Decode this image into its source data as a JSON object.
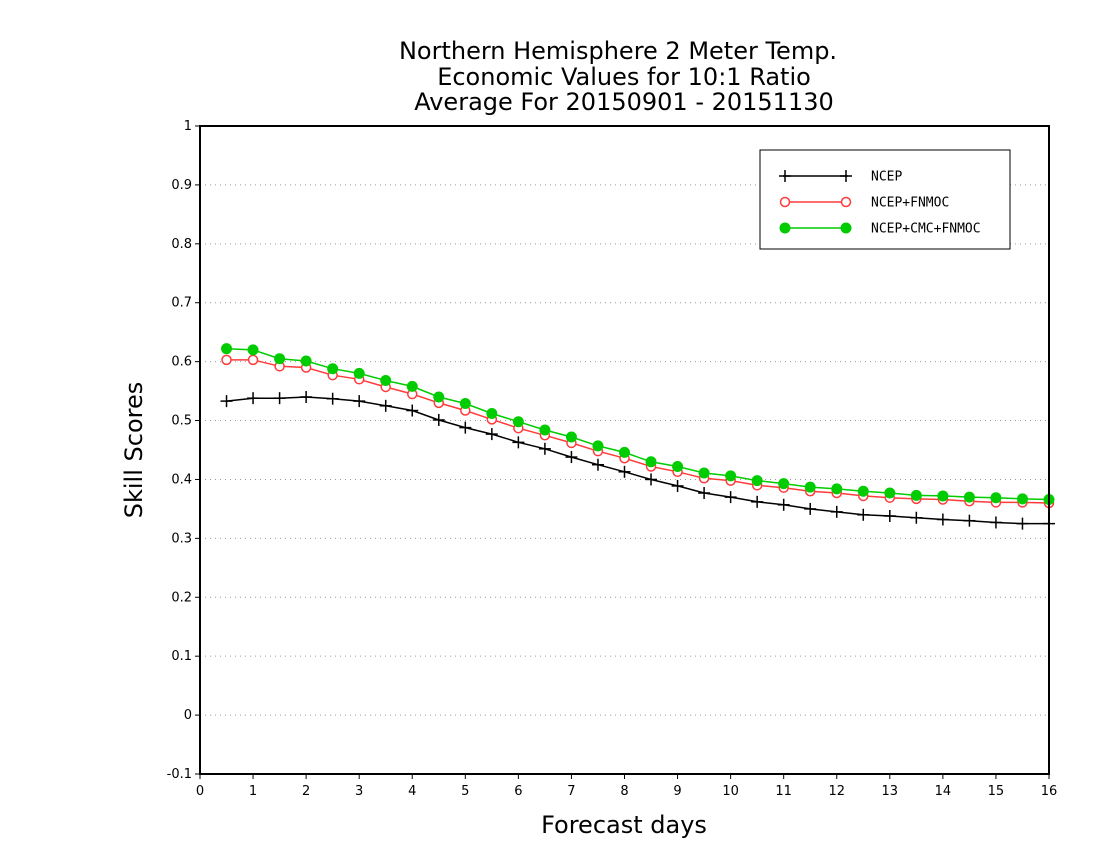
{
  "chart_data": {
    "type": "line",
    "title_lines": [
      "Northern Hemisphere 2 Meter Temp.",
      "Economic Values for 10:1 Ratio",
      "Average For 20150901 - 20151130"
    ],
    "xlabel": "Forecast days",
    "ylabel": "Skill Scores",
    "xlim": [
      0,
      16
    ],
    "ylim": [
      -0.1,
      1
    ],
    "x_ticks": [
      "0",
      "1",
      "2",
      "3",
      "4",
      "5",
      "6",
      "7",
      "8",
      "9",
      "10",
      "11",
      "12",
      "13",
      "14",
      "15",
      "16"
    ],
    "y_ticks": [
      "-0.1",
      "0",
      "0.1",
      "0.2",
      "0.3",
      "0.4",
      "0.5",
      "0.6",
      "0.7",
      "0.8",
      "0.9",
      "1"
    ],
    "grid": "dotted horizontal",
    "legend_position": "top-right",
    "x": [
      0.5,
      1,
      1.5,
      2,
      2.5,
      3,
      3.5,
      4,
      4.5,
      5,
      5.5,
      6,
      6.5,
      7,
      7.5,
      8,
      8.5,
      9,
      9.5,
      10,
      10.5,
      11,
      11.5,
      12,
      12.5,
      13,
      13.5,
      14,
      14.5,
      15,
      15.5,
      16
    ],
    "series": [
      {
        "name": "NCEP",
        "color": "#000000",
        "marker": "plus",
        "values": [
          0.533,
          0.538,
          0.538,
          0.54,
          0.537,
          0.533,
          0.525,
          0.517,
          0.501,
          0.488,
          0.477,
          0.463,
          0.452,
          0.438,
          0.425,
          0.413,
          0.4,
          0.389,
          0.377,
          0.37,
          0.362,
          0.357,
          0.35,
          0.345,
          0.34,
          0.338,
          0.335,
          0.332,
          0.33,
          0.327,
          0.325,
          0.325
        ]
      },
      {
        "name": "NCEP+FNMOC",
        "color": "#ff3b3b",
        "marker": "open-circle",
        "values": [
          0.603,
          0.603,
          0.592,
          0.59,
          0.577,
          0.57,
          0.557,
          0.545,
          0.53,
          0.517,
          0.502,
          0.487,
          0.475,
          0.462,
          0.448,
          0.436,
          0.422,
          0.413,
          0.402,
          0.398,
          0.39,
          0.386,
          0.38,
          0.377,
          0.372,
          0.369,
          0.367,
          0.366,
          0.363,
          0.361,
          0.361,
          0.36
        ]
      },
      {
        "name": "NCEP+CMC+FNMOC",
        "color": "#00cc00",
        "marker": "filled-circle",
        "values": [
          0.622,
          0.62,
          0.605,
          0.601,
          0.588,
          0.58,
          0.568,
          0.558,
          0.54,
          0.529,
          0.512,
          0.498,
          0.484,
          0.472,
          0.457,
          0.446,
          0.43,
          0.422,
          0.411,
          0.406,
          0.398,
          0.393,
          0.387,
          0.384,
          0.38,
          0.377,
          0.373,
          0.372,
          0.37,
          0.369,
          0.367,
          0.366
        ]
      }
    ]
  }
}
